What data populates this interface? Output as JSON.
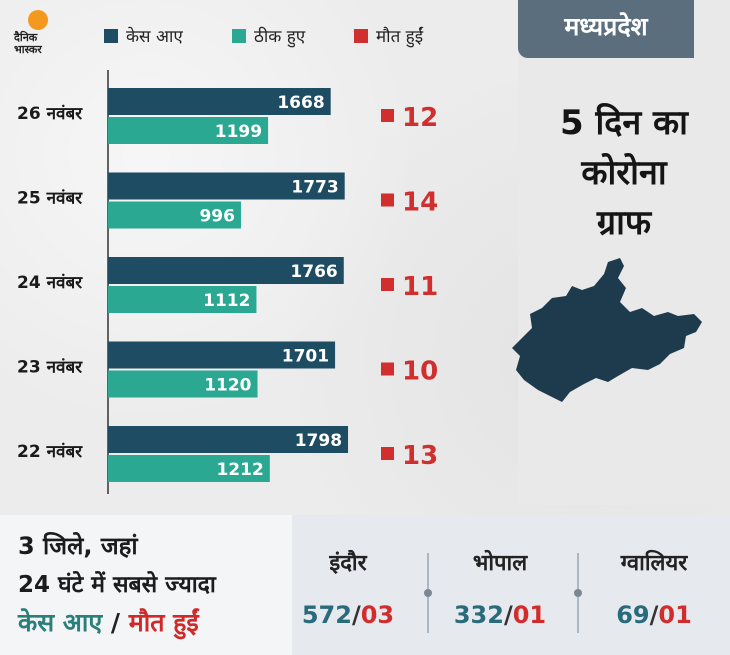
{
  "brand": {
    "logo_line1": "दैनिक",
    "logo_line2": "भास्कर"
  },
  "legend": [
    {
      "label": "केस आए",
      "color": "#1e4d63"
    },
    {
      "label": "ठीक हुए",
      "color": "#2aa891"
    },
    {
      "label": "मौत हुईं",
      "color": "#d12e2e"
    }
  ],
  "state_label": "मध्यप्रदेश",
  "panel_title": [
    "5 दिन का",
    "कोरोना",
    "ग्राफ"
  ],
  "chart_data": {
    "type": "bar",
    "orientation": "horizontal",
    "categories": [
      "26 नवंबर",
      "25 नवंबर",
      "24 नवंबर",
      "23 नवंबर",
      "22 नवंबर"
    ],
    "series": [
      {
        "name": "केस आए",
        "values": [
          1668,
          1773,
          1766,
          1701,
          1798
        ],
        "color": "#1e4d63"
      },
      {
        "name": "ठीक हुए",
        "values": [
          1199,
          996,
          1112,
          1120,
          1212
        ],
        "color": "#2aa891"
      },
      {
        "name": "मौत हुईं",
        "values": [
          12,
          14,
          11,
          10,
          13
        ],
        "color": "#d12e2e"
      }
    ]
  },
  "bottom": {
    "line1": "3 जिले, जहां",
    "line2": "24 घंटे में सबसे ज्यादा",
    "line3_cases": "केस आए",
    "line3_sep": "/",
    "line3_deaths": "मौत हुईं",
    "slash": "/",
    "cities": [
      {
        "name": "इंदौर",
        "cases": "572",
        "deaths": "03"
      },
      {
        "name": "भोपाल",
        "cases": "332",
        "deaths": "01"
      },
      {
        "name": "ग्वालियर",
        "cases": "69",
        "deaths": "01"
      }
    ]
  }
}
